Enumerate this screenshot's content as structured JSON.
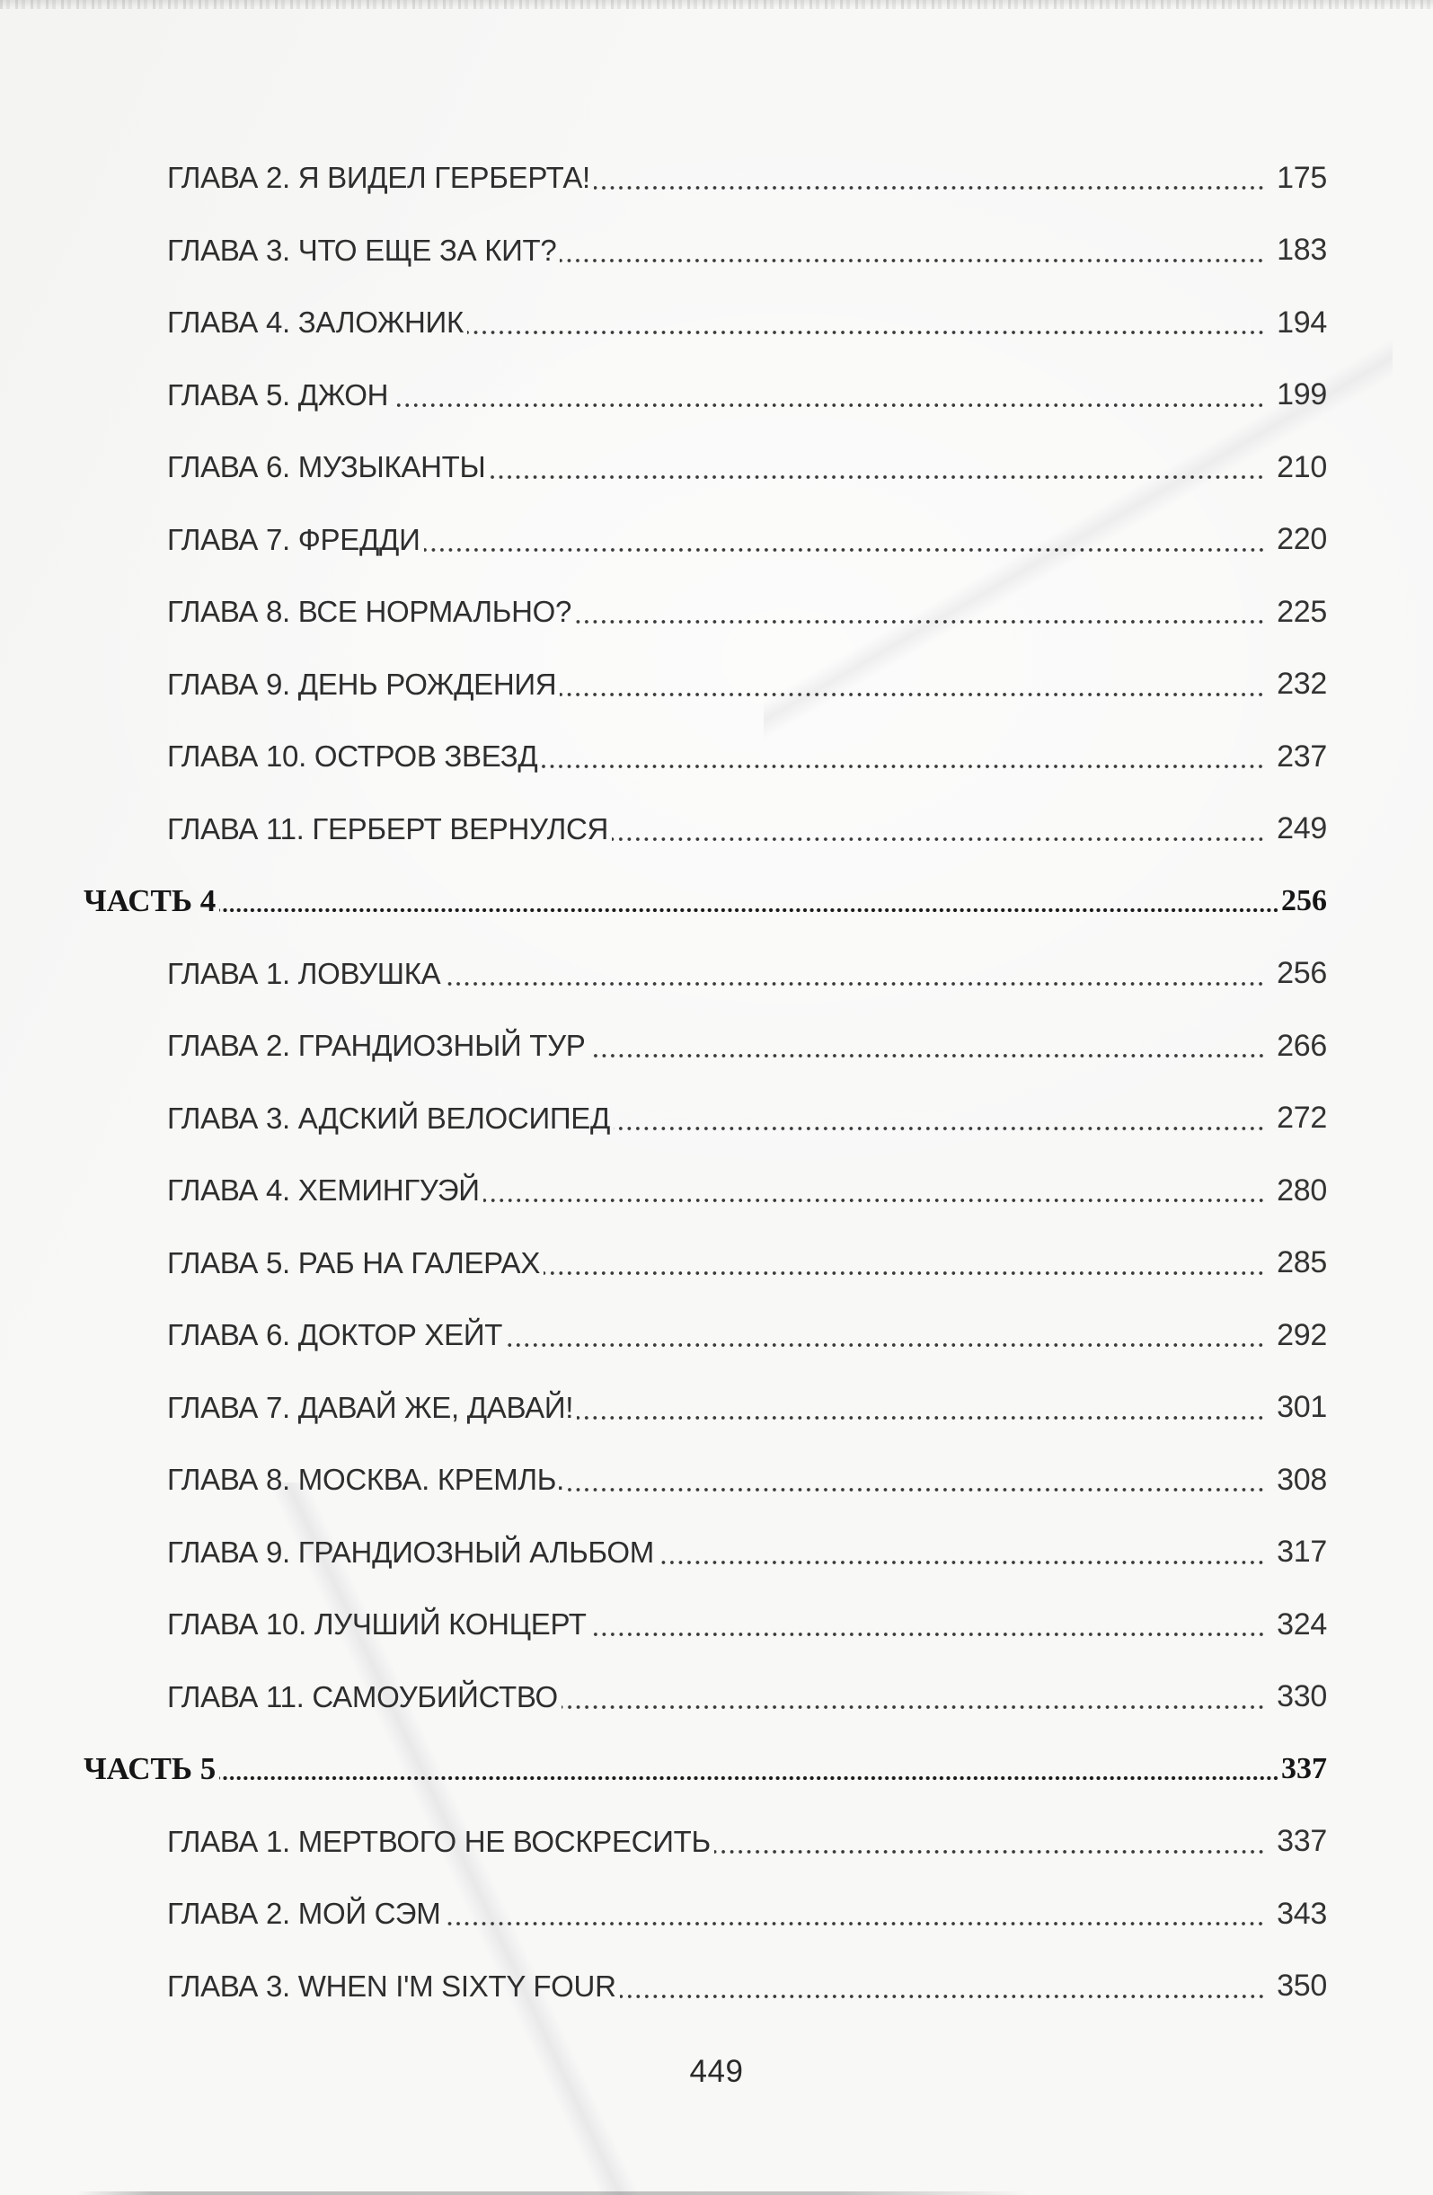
{
  "page": {
    "footer_page_number": "449"
  },
  "toc": {
    "entries": [
      {
        "type": "chapter",
        "label": "ГЛАВА 2. Я ВИДЕЛ ГЕРБЕРТА!",
        "page": "175"
      },
      {
        "type": "chapter",
        "label": "ГЛАВА 3. ЧТО ЕЩЕ ЗА КИТ?",
        "page": "183"
      },
      {
        "type": "chapter",
        "label": "ГЛАВА 4. ЗАЛОЖНИК",
        "page": "194"
      },
      {
        "type": "chapter",
        "label": "ГЛАВА 5. ДЖОН",
        "page": "199"
      },
      {
        "type": "chapter",
        "label": "ГЛАВА 6. МУЗЫКАНТЫ",
        "page": "210"
      },
      {
        "type": "chapter",
        "label": "ГЛАВА 7. ФРЕДДИ",
        "page": "220"
      },
      {
        "type": "chapter",
        "label": "ГЛАВА 8. ВСЕ НОРМАЛЬНО?",
        "page": "225"
      },
      {
        "type": "chapter",
        "label": "ГЛАВА 9. ДЕНЬ РОЖДЕНИЯ",
        "page": "232"
      },
      {
        "type": "chapter",
        "label": "ГЛАВА 10. ОСТРОВ ЗВЕЗД",
        "page": "237"
      },
      {
        "type": "chapter",
        "label": "ГЛАВА 11. ГЕРБЕРТ ВЕРНУЛСЯ",
        "page": "249"
      },
      {
        "type": "part",
        "label": "ЧАСТЬ 4",
        "page": "256"
      },
      {
        "type": "chapter",
        "label": "ГЛАВА 1. ЛОВУШКА",
        "page": "256"
      },
      {
        "type": "chapter",
        "label": "ГЛАВА 2. ГРАНДИОЗНЫЙ ТУР",
        "page": "266"
      },
      {
        "type": "chapter",
        "label": "ГЛАВА 3. АДСКИЙ ВЕЛОСИПЕД",
        "page": "272"
      },
      {
        "type": "chapter",
        "label": "ГЛАВА 4. ХЕМИНГУЭЙ",
        "page": "280"
      },
      {
        "type": "chapter",
        "label": "ГЛАВА 5. РАБ НА ГАЛЕРАХ",
        "page": "285"
      },
      {
        "type": "chapter",
        "label": "ГЛАВА 6. ДОКТОР ХЕЙТ",
        "page": "292"
      },
      {
        "type": "chapter",
        "label": "ГЛАВА 7. ДАВАЙ ЖЕ, ДАВАЙ!",
        "page": "301"
      },
      {
        "type": "chapter",
        "label": "ГЛАВА 8. МОСКВА. КРЕМЛЬ.",
        "page": "308"
      },
      {
        "type": "chapter",
        "label": "ГЛАВА 9. ГРАНДИОЗНЫЙ АЛЬБОМ",
        "page": "317"
      },
      {
        "type": "chapter",
        "label": "ГЛАВА 10. ЛУЧШИЙ КОНЦЕРТ",
        "page": "324"
      },
      {
        "type": "chapter",
        "label": "ГЛАВА 11. САМОУБИЙСТВО",
        "page": "330"
      },
      {
        "type": "part",
        "label": "ЧАСТЬ 5",
        "page": "337"
      },
      {
        "type": "chapter",
        "label": "ГЛАВА 1. МЕРТВОГО НЕ ВОСКРЕСИТЬ",
        "page": "337"
      },
      {
        "type": "chapter",
        "label": "ГЛАВА 2. МОЙ СЭМ",
        "page": "343"
      },
      {
        "type": "chapter",
        "label": "ГЛАВА 3. WHEN I'M SIXTY FOUR",
        "page": "350"
      }
    ]
  }
}
